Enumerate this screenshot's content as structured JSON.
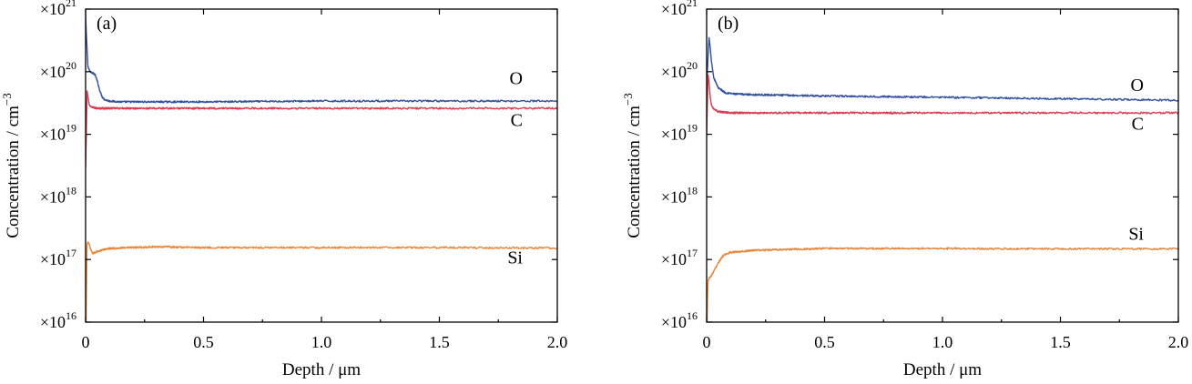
{
  "chart_data": [
    {
      "type": "line",
      "panel_label": "(a)",
      "xlabel": "Depth / μm",
      "ylabel": "Concentration / cm⁻³",
      "ylabel_parts": {
        "text": "Concentration / cm",
        "sup": "−3"
      },
      "xlim": [
        0,
        2.0
      ],
      "ylim": [
        1e+16,
        1e+21
      ],
      "yscale": "log",
      "x_ticks": [
        "0",
        "0.5",
        "1.0",
        "1.5",
        "2.0"
      ],
      "y_ticks": [
        {
          "base": "×10",
          "exp": "16"
        },
        {
          "base": "×10",
          "exp": "17"
        },
        {
          "base": "×10",
          "exp": "18"
        },
        {
          "base": "×10",
          "exp": "19"
        },
        {
          "base": "×10",
          "exp": "20"
        },
        {
          "base": "×10",
          "exp": "21"
        }
      ],
      "series": [
        {
          "name": "O",
          "color": "#3050a0",
          "x": [
            0,
            0.003,
            0.01,
            0.02,
            0.03,
            0.04,
            0.05,
            0.06,
            0.07,
            0.08,
            0.1,
            0.15,
            0.3,
            0.5,
            1.0,
            1.5,
            2.0
          ],
          "y": [
            8e+20,
            4e+20,
            1.2e+20,
            1e+20,
            9.5e+19,
            9e+19,
            7e+19,
            5e+19,
            4e+19,
            3.6e+19,
            3.4e+19,
            3.3e+19,
            3.3e+19,
            3.3e+19,
            3.4e+19,
            3.4e+19,
            3.4e+19
          ]
        },
        {
          "name": "C",
          "color": "#d63d52",
          "x": [
            0,
            0.003,
            0.006,
            0.01,
            0.015,
            0.02,
            0.03,
            0.05,
            0.08,
            0.1,
            0.5,
            1.0,
            1.5,
            2.0
          ],
          "y": [
            3e+18,
            1e+19,
            5e+19,
            4e+19,
            3e+19,
            2.8e+19,
            2.7e+19,
            2.6e+19,
            2.6e+19,
            2.6e+19,
            2.6e+19,
            2.6e+19,
            2.6e+19,
            2.6e+19
          ]
        },
        {
          "name": "Si",
          "color": "#e8873a",
          "x": [
            0.002,
            0.004,
            0.006,
            0.01,
            0.015,
            0.02,
            0.03,
            0.05,
            0.08,
            0.1,
            0.3,
            0.5,
            1.0,
            1.5,
            2.0
          ],
          "y": [
            1e+16,
            5e+16,
            1.7e+17,
            1.9e+17,
            1.8e+17,
            1.5e+17,
            1.25e+17,
            1.35e+17,
            1.45e+17,
            1.5e+17,
            1.6e+17,
            1.55e+17,
            1.55e+17,
            1.55e+17,
            1.52e+17
          ]
        }
      ],
      "series_label_y": {
        "O": 8e+19,
        "C": 1.7e+19,
        "Si": 1.1e+17
      }
    },
    {
      "type": "line",
      "panel_label": "(b)",
      "xlabel": "Depth / μm",
      "ylabel": "Concentration / cm⁻³",
      "ylabel_parts": {
        "text": "Concentration / cm",
        "sup": "−3"
      },
      "xlim": [
        0,
        2.0
      ],
      "ylim": [
        1e+16,
        1e+21
      ],
      "yscale": "log",
      "x_ticks": [
        "0",
        "0.5",
        "1.0",
        "1.5",
        "2.0"
      ],
      "y_ticks": [
        {
          "base": "×10",
          "exp": "16"
        },
        {
          "base": "×10",
          "exp": "17"
        },
        {
          "base": "×10",
          "exp": "18"
        },
        {
          "base": "×10",
          "exp": "19"
        },
        {
          "base": "×10",
          "exp": "20"
        },
        {
          "base": "×10",
          "exp": "21"
        }
      ],
      "series": [
        {
          "name": "O",
          "color": "#3050a0",
          "x": [
            0,
            0.003,
            0.01,
            0.015,
            0.02,
            0.03,
            0.05,
            0.08,
            0.12,
            0.2,
            0.5,
            1.0,
            1.5,
            2.0
          ],
          "y": [
            1.5e+19,
            1e+20,
            3.5e+20,
            2.5e+20,
            1.5e+20,
            8e+19,
            5.5e+19,
            4.6e+19,
            4.4e+19,
            4.3e+19,
            4.1e+19,
            3.9e+19,
            3.7e+19,
            3.5e+19
          ]
        },
        {
          "name": "C",
          "color": "#d63d52",
          "x": [
            0,
            0.003,
            0.006,
            0.01,
            0.015,
            0.02,
            0.03,
            0.05,
            0.1,
            0.5,
            1.0,
            1.5,
            2.0
          ],
          "y": [
            1e+19,
            3e+19,
            9e+19,
            7e+19,
            4e+19,
            3e+19,
            2.5e+19,
            2.3e+19,
            2.2e+19,
            2.2e+19,
            2.2e+19,
            2.2e+19,
            2.2e+19
          ]
        },
        {
          "name": "Si",
          "color": "#e8873a",
          "x": [
            0.002,
            0.004,
            0.006,
            0.01,
            0.02,
            0.03,
            0.05,
            0.07,
            0.1,
            0.2,
            0.5,
            1.0,
            1.5,
            2.0
          ],
          "y": [
            1e+16,
            3e+16,
            4.5e+16,
            5e+16,
            5.5e+16,
            6.5e+16,
            9e+16,
            1.15e+17,
            1.3e+17,
            1.4e+17,
            1.5e+17,
            1.5e+17,
            1.48e+17,
            1.48e+17
          ]
        }
      ],
      "series_label_y": {
        "O": 6.2e+19,
        "C": 1.5e+19,
        "Si": 2.6e+17
      }
    }
  ]
}
